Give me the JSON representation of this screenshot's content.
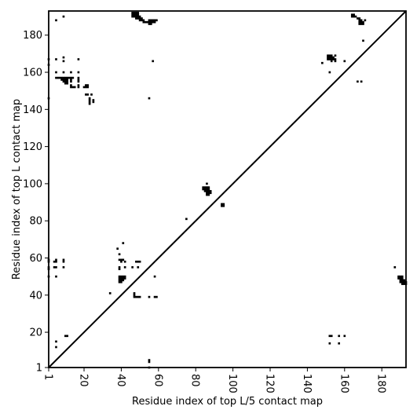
{
  "chart_data": {
    "type": "heatmap",
    "title": "",
    "xlabel": "Residue index of top L/5 contact map",
    "ylabel": "Residue index of top L contact map",
    "xlim": [
      1,
      193
    ],
    "ylim": [
      1,
      193
    ],
    "x_ticks": [
      1,
      20,
      40,
      60,
      80,
      100,
      120,
      140,
      160,
      180
    ],
    "y_ticks": [
      1,
      20,
      40,
      60,
      80,
      100,
      120,
      140,
      160,
      180
    ],
    "x_tick_rotation_deg": 270,
    "diagonal": {
      "from": [
        1,
        1
      ],
      "to": [
        193,
        193
      ]
    },
    "grid": false,
    "colors": {
      "contact": "#000000",
      "background": "#ffffff",
      "axes": "#000000"
    },
    "contacts": [
      [
        46,
        192
      ],
      [
        47,
        192
      ],
      [
        48,
        192
      ],
      [
        49,
        192
      ],
      [
        46,
        191
      ],
      [
        47,
        191
      ],
      [
        48,
        191
      ],
      [
        49,
        191
      ],
      [
        46,
        190
      ],
      [
        47,
        190
      ],
      [
        48,
        190
      ],
      [
        49,
        190
      ],
      [
        50,
        190
      ],
      [
        48,
        189
      ],
      [
        49,
        189
      ],
      [
        50,
        189
      ],
      [
        51,
        189
      ],
      [
        50,
        188
      ],
      [
        51,
        188
      ],
      [
        52,
        188
      ],
      [
        52,
        187
      ],
      [
        53,
        187
      ],
      [
        55,
        188
      ],
      [
        56,
        188
      ],
      [
        57,
        188
      ],
      [
        58,
        188
      ],
      [
        59,
        188
      ],
      [
        54,
        187
      ],
      [
        55,
        187
      ],
      [
        56,
        187
      ],
      [
        57,
        187
      ],
      [
        58,
        187
      ],
      [
        55,
        186
      ],
      [
        56,
        186
      ],
      [
        5,
        188
      ],
      [
        9,
        190
      ],
      [
        57,
        166
      ],
      [
        55,
        146
      ],
      [
        1,
        167
      ],
      [
        5,
        167
      ],
      [
        9,
        168
      ],
      [
        9,
        166
      ],
      [
        17,
        167
      ],
      [
        1,
        164
      ],
      [
        1,
        146
      ],
      [
        5,
        160
      ],
      [
        9,
        160
      ],
      [
        13,
        160
      ],
      [
        17,
        160
      ],
      [
        5,
        157
      ],
      [
        6,
        157
      ],
      [
        7,
        157
      ],
      [
        8,
        157
      ],
      [
        9,
        157
      ],
      [
        10,
        157
      ],
      [
        11,
        157
      ],
      [
        12,
        157
      ],
      [
        13,
        157
      ],
      [
        14,
        157
      ],
      [
        17,
        157
      ],
      [
        8,
        156
      ],
      [
        9,
        156
      ],
      [
        10,
        156
      ],
      [
        11,
        156
      ],
      [
        13,
        156
      ],
      [
        17,
        156
      ],
      [
        9,
        155
      ],
      [
        10,
        155
      ],
      [
        11,
        155
      ],
      [
        13,
        155
      ],
      [
        17,
        155
      ],
      [
        10,
        154
      ],
      [
        11,
        154
      ],
      [
        13,
        153
      ],
      [
        17,
        153
      ],
      [
        21,
        153
      ],
      [
        22,
        153
      ],
      [
        13,
        152
      ],
      [
        14,
        152
      ],
      [
        15,
        152
      ],
      [
        17,
        152
      ],
      [
        20,
        152
      ],
      [
        21,
        152
      ],
      [
        22,
        152
      ],
      [
        21,
        148
      ],
      [
        22,
        148
      ],
      [
        24,
        148
      ],
      [
        23,
        146
      ],
      [
        23,
        145
      ],
      [
        25,
        145
      ],
      [
        23,
        144
      ],
      [
        25,
        144
      ],
      [
        23,
        143
      ],
      [
        148,
        165
      ],
      [
        151,
        169
      ],
      [
        152,
        169
      ],
      [
        153,
        169
      ],
      [
        155,
        169
      ],
      [
        151,
        168
      ],
      [
        152,
        168
      ],
      [
        153,
        168
      ],
      [
        154,
        168
      ],
      [
        151,
        167
      ],
      [
        152,
        167
      ],
      [
        153,
        167
      ],
      [
        154,
        167
      ],
      [
        155,
        167
      ],
      [
        153,
        166
      ],
      [
        155,
        166
      ],
      [
        160,
        166
      ],
      [
        152,
        160
      ],
      [
        164,
        191
      ],
      [
        165,
        191
      ],
      [
        164,
        190
      ],
      [
        165,
        190
      ],
      [
        166,
        190
      ],
      [
        167,
        189
      ],
      [
        168,
        189
      ],
      [
        168,
        188
      ],
      [
        169,
        188
      ],
      [
        171,
        188
      ],
      [
        168,
        187
      ],
      [
        169,
        187
      ],
      [
        170,
        187
      ],
      [
        168,
        186
      ],
      [
        169,
        186
      ],
      [
        170,
        186
      ],
      [
        170,
        177
      ],
      [
        167,
        155
      ],
      [
        169,
        155
      ],
      [
        86,
        100
      ],
      [
        84,
        98
      ],
      [
        85,
        98
      ],
      [
        86,
        98
      ],
      [
        87,
        98
      ],
      [
        84,
        97
      ],
      [
        85,
        97
      ],
      [
        86,
        97
      ],
      [
        87,
        97
      ],
      [
        85,
        96
      ],
      [
        86,
        96
      ],
      [
        87,
        96
      ],
      [
        88,
        96
      ],
      [
        86,
        95
      ],
      [
        87,
        95
      ],
      [
        88,
        95
      ],
      [
        86,
        94
      ],
      [
        87,
        94
      ],
      [
        94,
        89
      ],
      [
        95,
        89
      ],
      [
        94,
        88
      ],
      [
        95,
        88
      ],
      [
        75,
        81
      ],
      [
        41,
        68
      ],
      [
        38,
        65
      ],
      [
        39,
        62
      ],
      [
        1,
        59
      ],
      [
        5,
        59
      ],
      [
        9,
        59
      ],
      [
        39,
        59
      ],
      [
        40,
        59
      ],
      [
        41,
        59
      ],
      [
        1,
        58
      ],
      [
        4,
        58
      ],
      [
        5,
        58
      ],
      [
        9,
        58
      ],
      [
        40,
        58
      ],
      [
        42,
        58
      ],
      [
        48,
        58
      ],
      [
        49,
        58
      ],
      [
        50,
        58
      ],
      [
        1,
        55
      ],
      [
        4,
        55
      ],
      [
        5,
        55
      ],
      [
        9,
        55
      ],
      [
        39,
        55
      ],
      [
        42,
        55
      ],
      [
        46,
        55
      ],
      [
        49,
        55
      ],
      [
        1,
        54
      ],
      [
        39,
        54
      ],
      [
        1,
        50
      ],
      [
        5,
        50
      ],
      [
        58,
        50
      ],
      [
        39,
        50
      ],
      [
        40,
        50
      ],
      [
        41,
        50
      ],
      [
        42,
        50
      ],
      [
        39,
        49
      ],
      [
        40,
        49
      ],
      [
        41,
        49
      ],
      [
        42,
        49
      ],
      [
        39,
        48
      ],
      [
        40,
        48
      ],
      [
        41,
        48
      ],
      [
        39,
        47
      ],
      [
        40,
        47
      ],
      [
        34,
        41
      ],
      [
        47,
        41
      ],
      [
        47,
        40
      ],
      [
        47,
        39
      ],
      [
        48,
        39
      ],
      [
        49,
        39
      ],
      [
        50,
        39
      ],
      [
        55,
        39
      ],
      [
        58,
        39
      ],
      [
        59,
        39
      ],
      [
        5,
        15
      ],
      [
        5,
        12
      ],
      [
        10,
        18
      ],
      [
        11,
        18
      ],
      [
        55,
        5
      ],
      [
        55,
        4
      ],
      [
        55,
        1
      ],
      [
        152,
        18
      ],
      [
        153,
        18
      ],
      [
        157,
        18
      ],
      [
        160,
        18
      ],
      [
        152,
        14
      ],
      [
        157,
        14
      ],
      [
        187,
        55
      ],
      [
        189,
        50
      ],
      [
        190,
        50
      ],
      [
        191,
        50
      ],
      [
        189,
        49
      ],
      [
        190,
        49
      ],
      [
        191,
        49
      ],
      [
        190,
        48
      ],
      [
        191,
        48
      ],
      [
        192,
        48
      ],
      [
        190,
        47
      ],
      [
        191,
        47
      ],
      [
        192,
        47
      ],
      [
        193,
        47
      ],
      [
        191,
        46
      ],
      [
        192,
        46
      ],
      [
        193,
        46
      ]
    ]
  }
}
